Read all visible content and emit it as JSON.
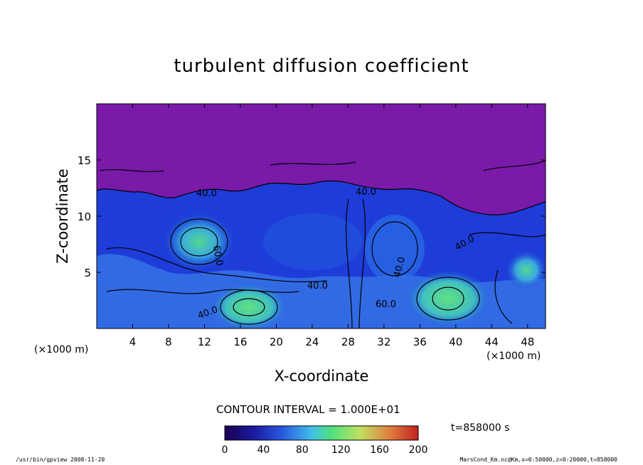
{
  "chart_data": {
    "type": "heatmap",
    "title": "turbulent diffusion coefficient",
    "xlabel": "X-coordinate",
    "ylabel": "Z-coordinate",
    "x_unit": "(×1000 m)",
    "y_unit": "(×1000 m)",
    "xlim": [
      0,
      50
    ],
    "ylim": [
      0,
      20
    ],
    "x_ticks": [
      4,
      8,
      12,
      16,
      20,
      24,
      28,
      32,
      36,
      40,
      44,
      48
    ],
    "y_ticks": [
      5,
      10,
      15
    ],
    "contour_labels": [
      {
        "text": "40.0",
        "x": 29.4,
        "z": 12.1
      },
      {
        "text": "40.0",
        "x": 25.0,
        "z": 3.7
      },
      {
        "text": "40.0",
        "x": 33.0,
        "z": 5.2
      },
      {
        "text": "60.0",
        "x": 12.9,
        "z": 8.0
      },
      {
        "text": "40.0",
        "x": 40.2,
        "z": 7.7
      },
      {
        "text": "40.0",
        "x": 12.0,
        "z": 1.2
      },
      {
        "text": "60.0",
        "x": 31.8,
        "z": 2.0
      },
      {
        "text": "40.0",
        "x": 22.0,
        "z": 12.0
      }
    ],
    "colorbar": {
      "ticks": [
        "0",
        "40",
        "80",
        "120",
        "160",
        "200"
      ],
      "min": 0,
      "max": 200
    },
    "contour_interval": "CONTOUR INTERVAL = 1.000E+01",
    "time": "t=858000  s",
    "colors": {
      "upper_region": "#7a1aa8",
      "deep_blue": "#1a2ad0",
      "mid_blue": "#2c6ee8",
      "cyan": "#40c0e8",
      "green": "#4ee070"
    }
  },
  "footer": {
    "left": "/usr/bin/gpview   2008-11-20",
    "right": "MarsCond_Km.nc@Km,x=0:50000,z=0:20000,t=858000"
  }
}
